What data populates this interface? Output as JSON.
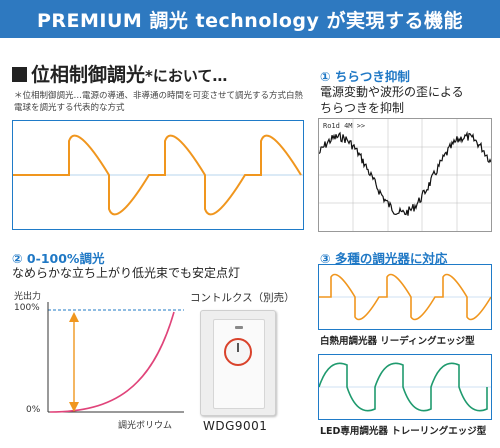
{
  "banner": {
    "title": "PREMIUM 調光 technology が実現する機能"
  },
  "phase_control": {
    "heading": "位相制御調光",
    "heading_suffix": "*において…",
    "note": "＊位相制御調光…電源の導通、非導通の時間を可変させて調光する方式白熱電球を調光する代表的な方式"
  },
  "flicker": {
    "title": "① ちらつき抑制",
    "desc_line1": "電源変動や波形の歪による",
    "desc_line2": "ちらつきを抑制",
    "scope_label": "Ro1d 4M >>"
  },
  "dimming_range": {
    "title": "② 0-100%調光",
    "desc": "なめらかな立ち上がり低光束でも安定点灯",
    "y_axis_label": "光出力",
    "y_top": "100%",
    "y_bottom": "0%",
    "x_axis_label": "調光ボリウム"
  },
  "controller": {
    "label": "コントルクス（別売）",
    "model": "WDG9001"
  },
  "compat": {
    "title": "③ 多種の調光器に対応",
    "incandescent_caption": "白熱用調光器 リーディングエッジ型",
    "led_caption": "LED専用調光器 トレーリングエッジ型"
  },
  "colors": {
    "banner": "#2e79c0",
    "accent_blue": "#1f78c5",
    "orange": "#f0961e",
    "green": "#1f9a6e",
    "pink": "#e0447a"
  }
}
